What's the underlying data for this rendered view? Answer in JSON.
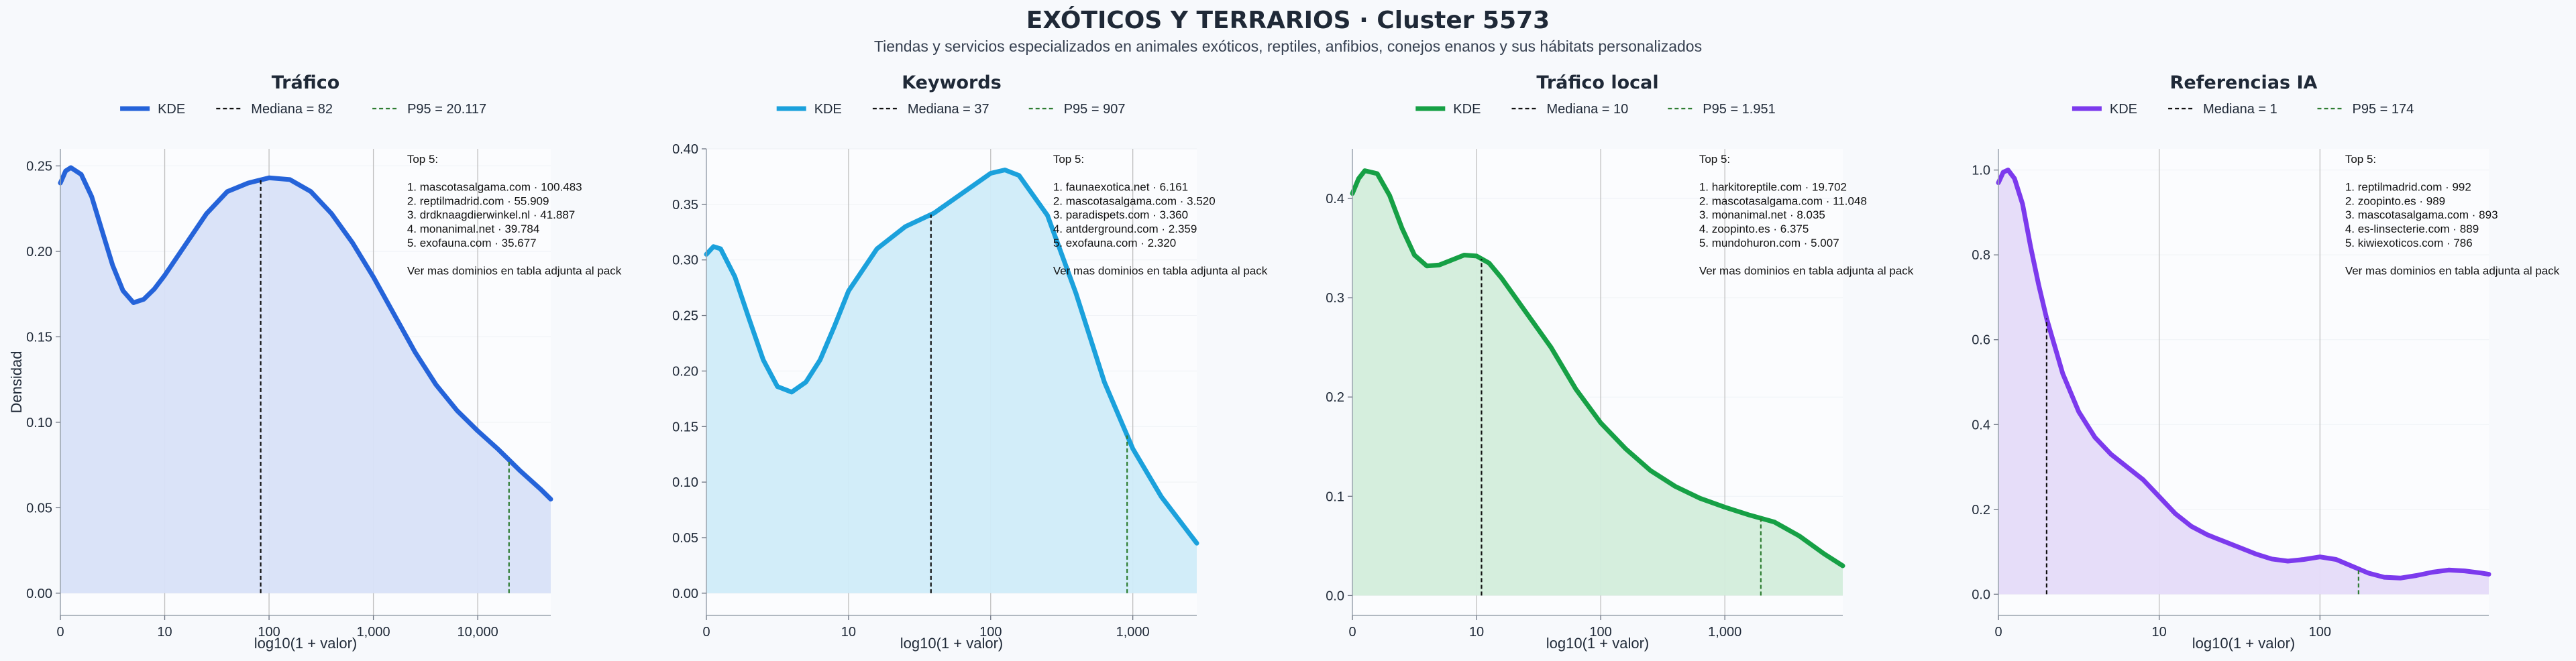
{
  "figure": {
    "title": "EXÓTICOS Y TERRARIOS · Cluster 5573",
    "subtitle": "Tiendas y servicios especializados en animales exóticos, reptiles, anfibios, conejos enanos y sus hábitats personalizados"
  },
  "colors": {
    "background": "#f7f9fc",
    "plot_background": "#fbfcfe",
    "median_line": "#111111",
    "p95_line": "#2e7d32",
    "grid": "#bfbfbf"
  },
  "chart_data": [
    {
      "type": "area",
      "title": "Tráfico",
      "xlabel": "log10(1 + valor)",
      "ylabel": "Densidad",
      "x_scale": "log10(1+x)",
      "xlim": [
        0,
        4.7
      ],
      "ylim": [
        -0.013,
        0.26
      ],
      "x_ticks": [
        {
          "v": 0,
          "label": "0"
        },
        {
          "v": 1,
          "label": "10"
        },
        {
          "v": 2,
          "label": "100"
        },
        {
          "v": 3,
          "label": "1,000"
        },
        {
          "v": 4,
          "label": "10,000"
        }
      ],
      "y_ticks": [
        {
          "v": 0,
          "label": "0.00"
        },
        {
          "v": 0.05,
          "label": "0.05"
        },
        {
          "v": 0.1,
          "label": "0.10"
        },
        {
          "v": 0.15,
          "label": "0.15"
        },
        {
          "v": 0.2,
          "label": "0.20"
        },
        {
          "v": 0.25,
          "label": "0.25"
        }
      ],
      "color": "#2563d9",
      "fill": "#d8e2f8",
      "legend": [
        "KDE",
        "Mediana = 82",
        "P95 = 20.117"
      ],
      "median_x": 1.92,
      "p95_x": 4.3,
      "series": [
        {
          "name": "KDE",
          "x": [
            0,
            0.05,
            0.1,
            0.2,
            0.3,
            0.4,
            0.5,
            0.6,
            0.7,
            0.8,
            0.9,
            1.0,
            1.2,
            1.4,
            1.6,
            1.8,
            2.0,
            2.2,
            2.4,
            2.6,
            2.8,
            3.0,
            3.2,
            3.4,
            3.6,
            3.8,
            4.0,
            4.2,
            4.4,
            4.6,
            4.7
          ],
          "y": [
            0.24,
            0.247,
            0.249,
            0.245,
            0.232,
            0.212,
            0.192,
            0.177,
            0.17,
            0.172,
            0.178,
            0.186,
            0.204,
            0.222,
            0.235,
            0.24,
            0.243,
            0.242,
            0.235,
            0.222,
            0.205,
            0.185,
            0.163,
            0.141,
            0.122,
            0.107,
            0.095,
            0.084,
            0.072,
            0.061,
            0.055
          ]
        }
      ],
      "annotation": [
        "Top 5:",
        "",
        "1. mascotasalgama.com · 100.483",
        "2. reptilmadrid.com · 55.909",
        "3. drdknaagdierwinkel.nl · 41.887",
        "4. monanimal.net · 39.784",
        "5. exofauna.com · 35.677",
        "",
        "Ver mas dominios en tabla adjunta al pack"
      ]
    },
    {
      "type": "area",
      "title": "Keywords",
      "xlabel": "log10(1 + valor)",
      "ylabel": "",
      "x_scale": "log10(1+x)",
      "xlim": [
        0,
        3.45
      ],
      "ylim": [
        -0.02,
        0.4
      ],
      "x_ticks": [
        {
          "v": 0,
          "label": "0"
        },
        {
          "v": 1,
          "label": "10"
        },
        {
          "v": 2,
          "label": "100"
        },
        {
          "v": 3,
          "label": "1,000"
        }
      ],
      "y_ticks": [
        {
          "v": 0,
          "label": "0.00"
        },
        {
          "v": 0.05,
          "label": "0.05"
        },
        {
          "v": 0.1,
          "label": "0.10"
        },
        {
          "v": 0.15,
          "label": "0.15"
        },
        {
          "v": 0.2,
          "label": "0.20"
        },
        {
          "v": 0.25,
          "label": "0.25"
        },
        {
          "v": 0.3,
          "label": "0.30"
        },
        {
          "v": 0.35,
          "label": "0.35"
        },
        {
          "v": 0.4,
          "label": "0.40"
        }
      ],
      "color": "#1ba1dc",
      "fill": "#d0ecf9",
      "legend": [
        "KDE",
        "Mediana = 37",
        "P95 = 907"
      ],
      "median_x": 1.58,
      "p95_x": 2.96,
      "series": [
        {
          "name": "KDE",
          "x": [
            0,
            0.05,
            0.1,
            0.2,
            0.3,
            0.4,
            0.5,
            0.6,
            0.7,
            0.8,
            0.9,
            1.0,
            1.2,
            1.4,
            1.6,
            1.8,
            2.0,
            2.1,
            2.2,
            2.4,
            2.6,
            2.8,
            3.0,
            3.2,
            3.45
          ],
          "y": [
            0.305,
            0.312,
            0.31,
            0.285,
            0.247,
            0.21,
            0.186,
            0.181,
            0.19,
            0.21,
            0.24,
            0.272,
            0.31,
            0.33,
            0.342,
            0.36,
            0.378,
            0.381,
            0.376,
            0.34,
            0.27,
            0.19,
            0.13,
            0.087,
            0.045
          ]
        }
      ],
      "annotation": [
        "Top 5:",
        "",
        "1. faunaexotica.net · 6.161",
        "2. mascotasalgama.com · 3.520",
        "3. paradispets.com · 3.360",
        "4. antderground.com · 2.359",
        "5. exofauna.com · 2.320",
        "",
        "Ver mas dominios en tabla adjunta al pack"
      ]
    },
    {
      "type": "area",
      "title": "Tráfico local",
      "xlabel": "log10(1 + valor)",
      "ylabel": "",
      "x_scale": "log10(1+x)",
      "xlim": [
        0,
        3.95
      ],
      "ylim": [
        -0.02,
        0.45
      ],
      "x_ticks": [
        {
          "v": 0,
          "label": "0"
        },
        {
          "v": 1,
          "label": "10"
        },
        {
          "v": 2,
          "label": "100"
        },
        {
          "v": 3,
          "label": "1,000"
        }
      ],
      "y_ticks": [
        {
          "v": 0,
          "label": "0.0"
        },
        {
          "v": 0.1,
          "label": "0.1"
        },
        {
          "v": 0.2,
          "label": "0.2"
        },
        {
          "v": 0.3,
          "label": "0.3"
        },
        {
          "v": 0.4,
          "label": "0.4"
        }
      ],
      "color": "#16a045",
      "fill": "#d3eddb",
      "legend": [
        "KDE",
        "Mediana = 10",
        "P95 = 1.951"
      ],
      "median_x": 1.04,
      "p95_x": 3.29,
      "series": [
        {
          "name": "KDE",
          "x": [
            0,
            0.05,
            0.1,
            0.2,
            0.3,
            0.4,
            0.5,
            0.6,
            0.7,
            0.8,
            0.9,
            1.0,
            1.1,
            1.2,
            1.4,
            1.6,
            1.8,
            2.0,
            2.2,
            2.4,
            2.6,
            2.8,
            3.0,
            3.2,
            3.4,
            3.6,
            3.8,
            3.95
          ],
          "y": [
            0.405,
            0.42,
            0.428,
            0.425,
            0.403,
            0.37,
            0.343,
            0.332,
            0.333,
            0.338,
            0.343,
            0.342,
            0.335,
            0.32,
            0.285,
            0.25,
            0.208,
            0.174,
            0.148,
            0.126,
            0.11,
            0.098,
            0.089,
            0.081,
            0.074,
            0.06,
            0.042,
            0.03
          ]
        }
      ],
      "annotation": [
        "Top 5:",
        "",
        "1. harkitoreptile.com · 19.702",
        "2. mascotasalgama.com · 11.048",
        "3. monanimal.net · 8.035",
        "4. zoopinto.es · 6.375",
        "5. mundohuron.com · 5.007",
        "",
        "Ver mas dominios en tabla adjunta al pack"
      ]
    },
    {
      "type": "area",
      "title": "Referencias IA",
      "xlabel": "log10(1 + valor)",
      "ylabel": "",
      "x_scale": "log10(1+x)",
      "xlim": [
        0,
        3.05
      ],
      "ylim": [
        -0.05,
        1.05
      ],
      "x_ticks": [
        {
          "v": 0,
          "label": "0"
        },
        {
          "v": 1,
          "label": "10"
        },
        {
          "v": 2,
          "label": "100"
        }
      ],
      "y_ticks": [
        {
          "v": 0,
          "label": "0.0"
        },
        {
          "v": 0.2,
          "label": "0.2"
        },
        {
          "v": 0.4,
          "label": "0.4"
        },
        {
          "v": 0.6,
          "label": "0.6"
        },
        {
          "v": 0.8,
          "label": "0.8"
        },
        {
          "v": 1.0,
          "label": "1.0"
        }
      ],
      "color": "#7c3aed",
      "fill": "#e5dbf9",
      "legend": [
        "KDE",
        "Mediana = 1",
        "P95 = 174"
      ],
      "median_x": 0.3,
      "p95_x": 2.24,
      "series": [
        {
          "name": "KDE",
          "x": [
            0,
            0.03,
            0.06,
            0.1,
            0.15,
            0.2,
            0.25,
            0.3,
            0.4,
            0.5,
            0.6,
            0.7,
            0.8,
            0.9,
            1.0,
            1.1,
            1.2,
            1.3,
            1.4,
            1.5,
            1.6,
            1.7,
            1.8,
            1.9,
            2.0,
            2.1,
            2.2,
            2.3,
            2.4,
            2.5,
            2.6,
            2.7,
            2.8,
            2.9,
            3.0,
            3.05
          ],
          "y": [
            0.97,
            0.995,
            1.0,
            0.98,
            0.92,
            0.82,
            0.73,
            0.65,
            0.52,
            0.43,
            0.37,
            0.33,
            0.3,
            0.27,
            0.23,
            0.19,
            0.16,
            0.14,
            0.125,
            0.11,
            0.095,
            0.083,
            0.078,
            0.082,
            0.088,
            0.082,
            0.066,
            0.05,
            0.04,
            0.038,
            0.044,
            0.052,
            0.057,
            0.055,
            0.05,
            0.047
          ]
        }
      ],
      "annotation": [
        "Top 5:",
        "",
        "1. reptilmadrid.com · 992",
        "2. zoopinto.es · 989",
        "3. mascotasalgama.com · 893",
        "4. es-linsecterie.com · 889",
        "5. kiwiexoticos.com · 786",
        "",
        "Ver mas dominios en tabla adjunta al pack"
      ]
    }
  ]
}
